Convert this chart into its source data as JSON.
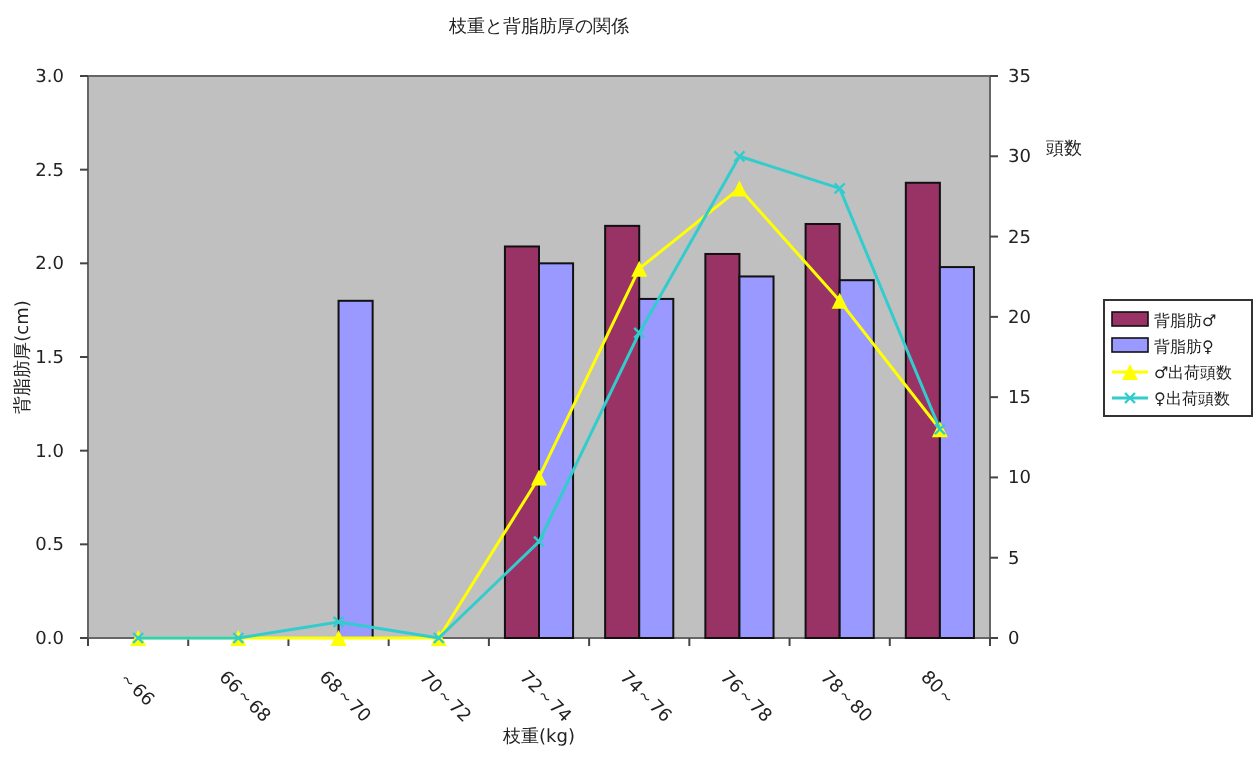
{
  "chart_data": {
    "type": "bar",
    "title": "枝重と背脂肪厚の関係",
    "xlabel": "枝重(kg)",
    "ylabel": "背脂肪厚(cm)",
    "y2label": "頭数",
    "categories": [
      "～66",
      "66～68",
      "68～70",
      "70～72",
      "72～74",
      "74～76",
      "76～78",
      "78～80",
      "80～"
    ],
    "series": [
      {
        "name": "背脂肪♂",
        "color": "#993366",
        "values": [
          null,
          null,
          null,
          null,
          2.09,
          2.2,
          2.05,
          2.21,
          2.43
        ]
      },
      {
        "name": "背脂肪♀",
        "color": "#9999ff",
        "values": [
          null,
          null,
          1.8,
          null,
          2.0,
          1.81,
          1.93,
          1.91,
          1.98
        ]
      },
      {
        "name": "♂出荷頭数",
        "type": "line",
        "axis": "y2",
        "color": "#ffff00",
        "marker": "triangle",
        "values": [
          0,
          0,
          0,
          0,
          10,
          23,
          28,
          21,
          13
        ]
      },
      {
        "name": "♀出荷頭数",
        "type": "line",
        "axis": "y2",
        "color": "#33cccc",
        "marker": "cross",
        "values": [
          0,
          0,
          1,
          0,
          6,
          19,
          30,
          28,
          13
        ]
      }
    ],
    "ylim": [
      0,
      3
    ],
    "yticks": [
      {
        "value": 0,
        "label": "0.0"
      },
      {
        "value": 0.5,
        "label": "0.5"
      },
      {
        "value": 1,
        "label": "1.0"
      },
      {
        "value": 1.5,
        "label": "1.5"
      },
      {
        "value": 2,
        "label": "2.0"
      },
      {
        "value": 2.5,
        "label": "2.5"
      },
      {
        "value": 3,
        "label": "3.0"
      }
    ],
    "y2lim": [
      0,
      35
    ],
    "y2ticks": [
      0,
      5,
      10,
      15,
      20,
      25,
      30,
      35
    ],
    "legend": "right",
    "grid": false
  }
}
